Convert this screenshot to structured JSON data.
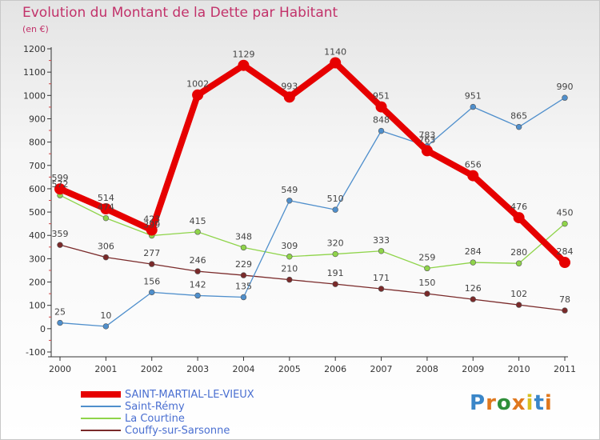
{
  "title": "Evolution du Montant de la Dette par Habitant",
  "subtitle": "(en €)",
  "brand": {
    "letters": [
      "P",
      "r",
      "o",
      "x",
      "i",
      "t",
      "i"
    ],
    "colors": [
      "#3a86c8",
      "#e0781e",
      "#2f8f3a",
      "#e0781e",
      "#d8c020",
      "#3a86c8",
      "#e0781e"
    ]
  },
  "chart_data": {
    "type": "line",
    "title": "Evolution du Montant de la Dette par Habitant",
    "subtitle": "(en €)",
    "xlabel": "",
    "ylabel": "",
    "x": [
      "2000",
      "2001",
      "2002",
      "2003",
      "2004",
      "2005",
      "2006",
      "2007",
      "2008",
      "2009",
      "2010",
      "2011"
    ],
    "ylim": [
      -100,
      1200
    ],
    "yticks": [
      -100,
      0,
      100,
      200,
      300,
      400,
      500,
      600,
      700,
      800,
      900,
      1000,
      1100,
      1200
    ],
    "grid": false,
    "legend_position": "bottom-left",
    "series": [
      {
        "name": "SAINT-MARTIAL-LE-VIEUX",
        "color": "#e60000",
        "emphasis": true,
        "values": [
          599,
          514,
          423,
          1002,
          1129,
          993,
          1140,
          951,
          763,
          656,
          476,
          284
        ]
      },
      {
        "name": "Saint-Rémy",
        "color": "#4f8fcc",
        "emphasis": false,
        "values": [
          25,
          10,
          156,
          142,
          135,
          549,
          510,
          848,
          783,
          951,
          865,
          990
        ]
      },
      {
        "name": "La Courtine",
        "color": "#8fd44a",
        "emphasis": false,
        "values": [
          572,
          474,
          399,
          415,
          348,
          309,
          320,
          333,
          259,
          284,
          280,
          450
        ]
      },
      {
        "name": "Couffy-sur-Sarsonne",
        "color": "#7a2a2a",
        "emphasis": false,
        "values": [
          359,
          306,
          277,
          246,
          229,
          210,
          191,
          171,
          150,
          126,
          102,
          78
        ]
      }
    ]
  }
}
